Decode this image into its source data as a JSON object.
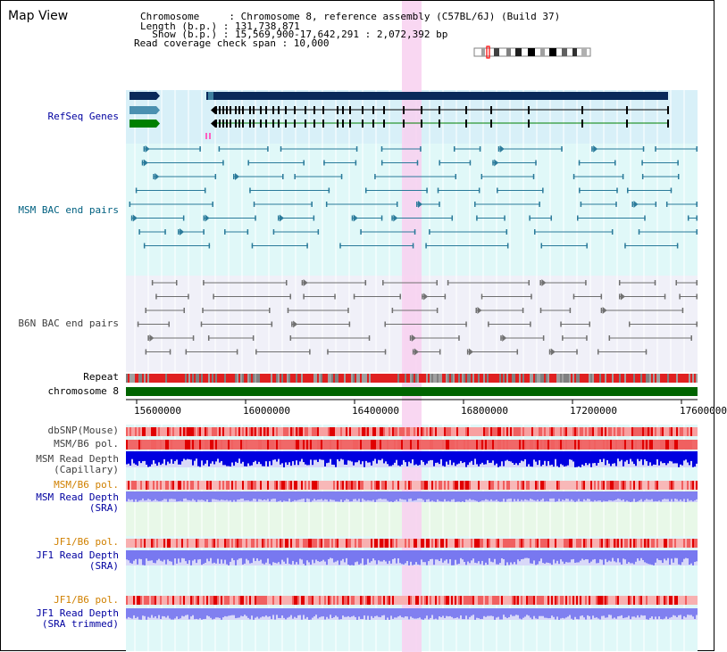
{
  "header": {
    "title": "Map View",
    "chromosome_line": "Chromosome     : Chromosome 8, reference assembly (C57BL/6J) (Build 37)",
    "length_line": "Length (b.p.) : 131,738,871",
    "show_line": "  Show (b.p.) : 15,569,900-17,642,291 : 2,072,392 bp",
    "coverage_line": "Read coverage check span : 10,000"
  },
  "tracks": {
    "refseq": "RefSeq Genes",
    "msm_bac": "MSM BAC end pairs",
    "b6n_bac": "B6N BAC end pairs",
    "repeat": "Repeat",
    "chromosome": "chromosome 8",
    "dbsnp": "dbSNP(Mouse)",
    "msm_pol": "MSM/B6 pol.",
    "msm_depth_cap_1": "MSM Read Depth",
    "msm_depth_cap_2": "(Capillary)",
    "msm_pol2": "MSM/B6 pol.",
    "msm_depth_sra_1": "MSM Read Depth",
    "msm_depth_sra_2": "(SRA)",
    "jf1_pol": "JF1/B6 pol.",
    "jf1_depth_sra_1": "JF1 Read Depth",
    "jf1_depth_sra_2": "(SRA)",
    "jf1_pol2": "JF1/B6 pol.",
    "jf1_depth_trim_1": "JF1 Read Depth",
    "jf1_depth_trim_2": "(SRA trimmed)"
  },
  "axis": {
    "ticks": [
      "15600000",
      "16000000",
      "16400000",
      "16800000",
      "17200000",
      "17600000"
    ]
  },
  "colors": {
    "highlight": "#f8d0f0",
    "refseq_bg": "#d8f0f8",
    "msm_bg": "#e0f8f8",
    "b6n_bg": "#f0f0f8",
    "chromosome": "#006400",
    "snp": "#f08080",
    "depth_blue": "#0000e0",
    "depth_light": "#8888f0"
  }
}
